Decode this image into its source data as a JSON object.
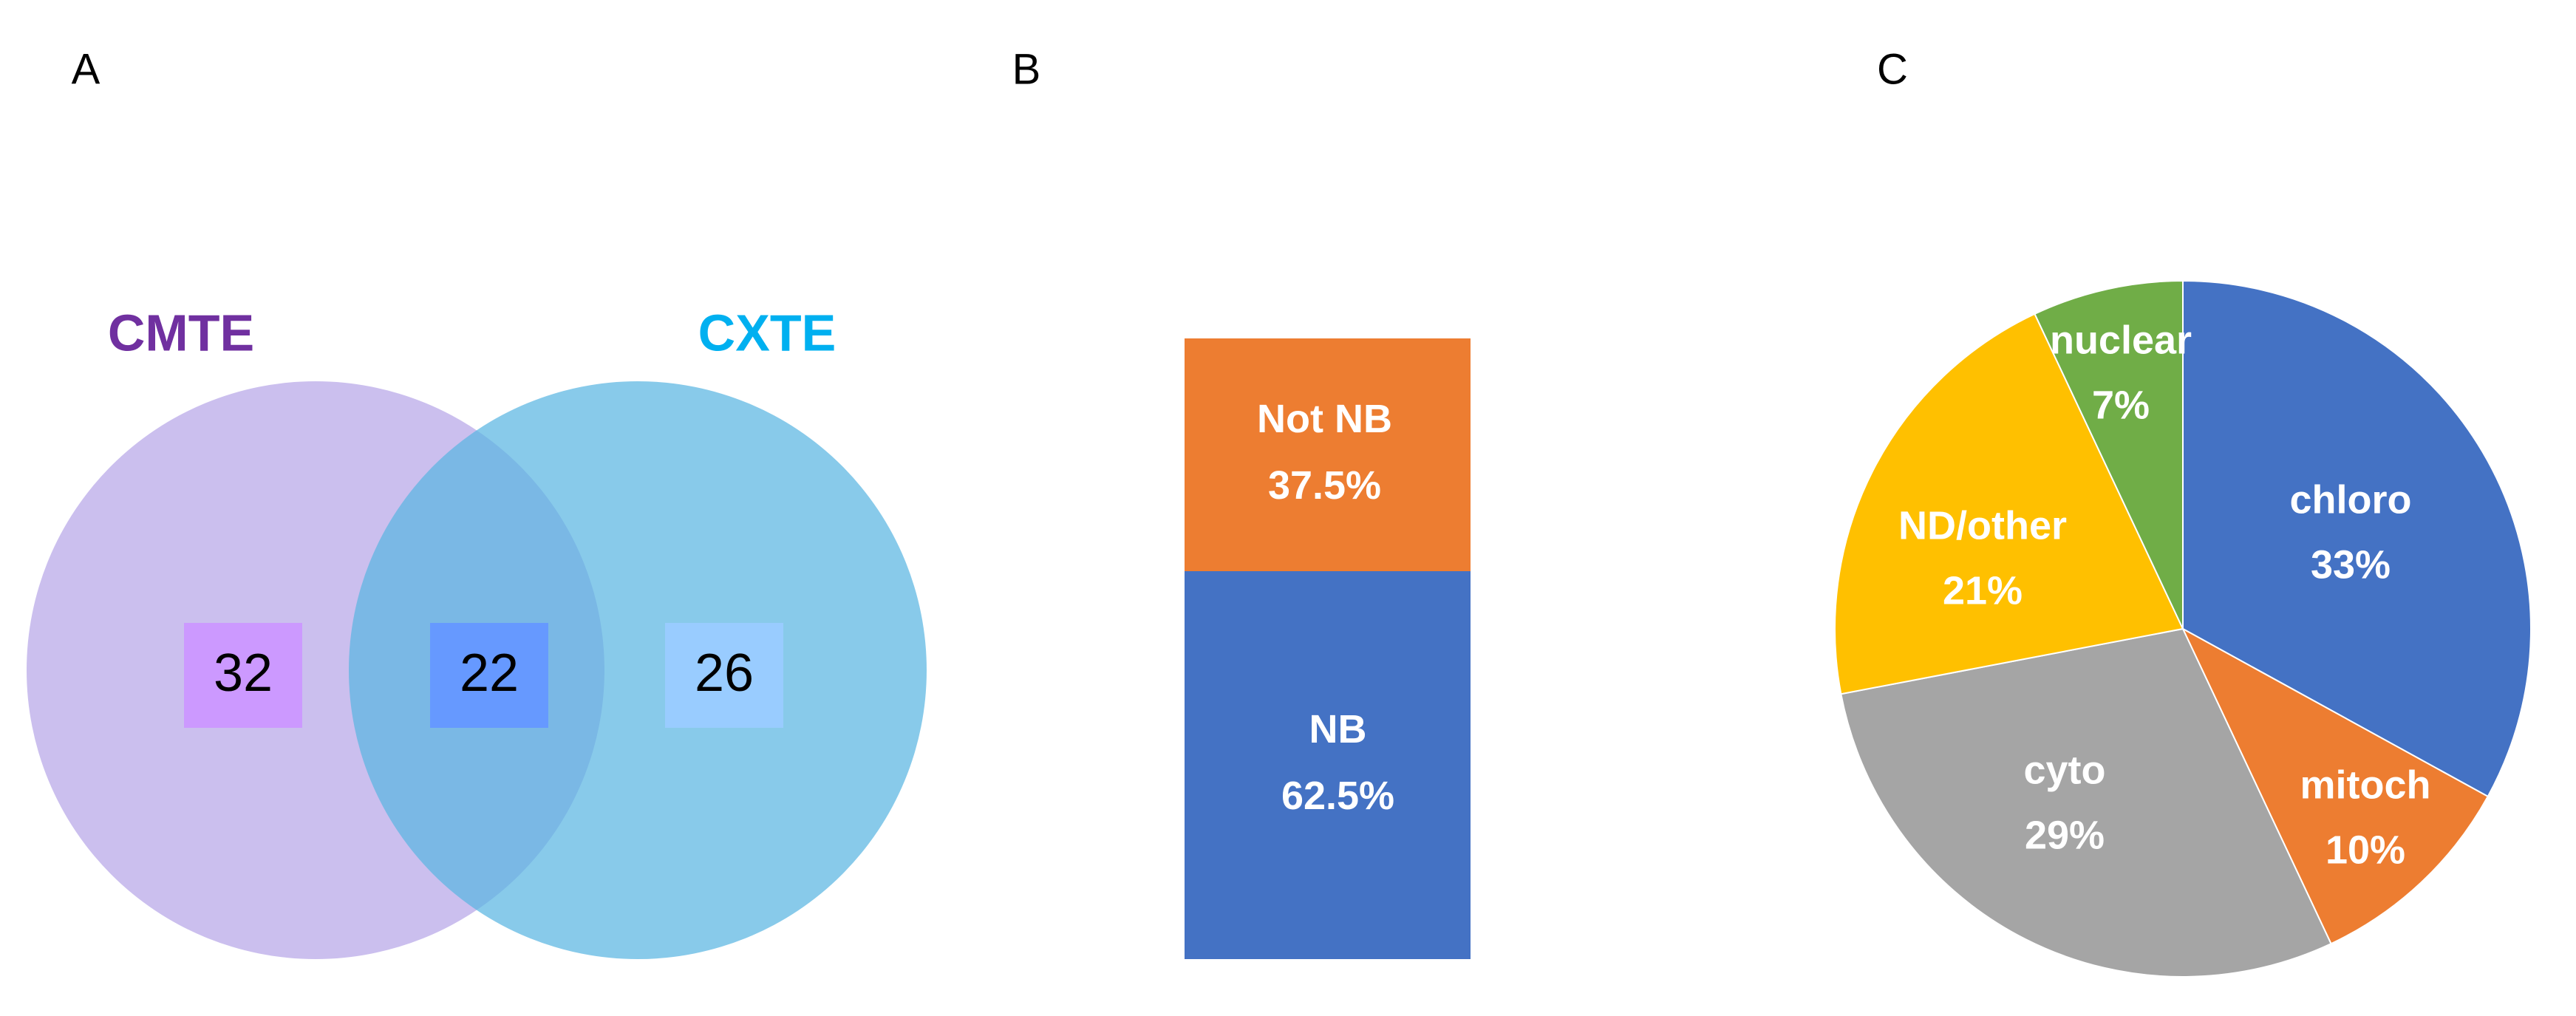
{
  "chart_data": [
    {
      "type": "venn",
      "panel_label": "A",
      "sets": [
        {
          "name": "CMTE",
          "color": "#7030a0",
          "fill": "#cbbfee"
        },
        {
          "name": "CXTE",
          "color": "#00b0f0",
          "fill": "#5ab6e2"
        }
      ],
      "values": [
        32,
        22,
        26
      ],
      "box_colors": [
        "#cc99ff",
        "#6699ff",
        "#99ccff"
      ]
    },
    {
      "type": "bar",
      "stacked": true,
      "panel_label": "B",
      "series": [
        {
          "name": "NB",
          "color": "#4472c4",
          "values": [
            62.5
          ],
          "value_labels": [
            "62.5%"
          ]
        },
        {
          "name": "Not NB",
          "color": "#ed7d31",
          "values": [
            37.5
          ],
          "value_labels": [
            "37.5%"
          ]
        }
      ]
    },
    {
      "type": "pie",
      "panel_label": "C",
      "categories": [
        "chloro",
        "mitoch",
        "cyto",
        "ND/other",
        "nuclear"
      ],
      "values": [
        33,
        10,
        29,
        21,
        7
      ],
      "value_labels": [
        "33%",
        "10%",
        "29%",
        "21%",
        "7%"
      ],
      "colors": [
        "#4472c4",
        "#ed7d31",
        "#a5a5a5",
        "#ffc000",
        "#70ad47"
      ]
    }
  ]
}
